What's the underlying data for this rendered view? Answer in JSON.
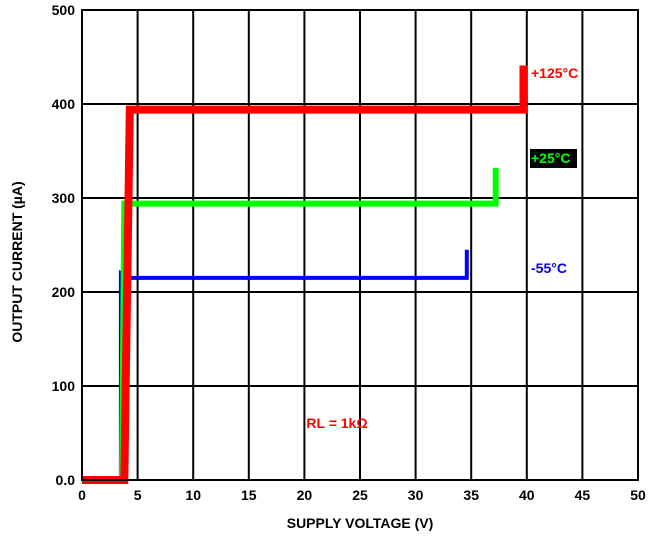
{
  "chart_data": {
    "type": "line",
    "xlabel": "SUPPLY VOLTAGE (V)",
    "ylabel": "OUTPUT CURRENT (µA)",
    "xlim": [
      0,
      50
    ],
    "ylim": [
      0,
      500
    ],
    "grid": true,
    "x_ticks": [
      0,
      5,
      10,
      15,
      20,
      25,
      30,
      35,
      40,
      45,
      50
    ],
    "x_tick_labels": [
      "0",
      "5",
      "10",
      "15",
      "20",
      "25",
      "30",
      "35",
      "40",
      "45",
      "50"
    ],
    "y_ticks": [
      0,
      100,
      200,
      300,
      400,
      500
    ],
    "y_tick_labels": [
      "0.0",
      "100",
      "200",
      "300",
      "400",
      "500"
    ],
    "series": [
      {
        "name": "-55°C",
        "color": "#0000ff",
        "x": [
          3.5,
          3.5,
          4.4,
          34.6,
          34.6
        ],
        "y": [
          0,
          220,
          215,
          215,
          245
        ]
      },
      {
        "name": "+25°C",
        "color": "#00ff00",
        "x": [
          3.6,
          3.8,
          37.2,
          37.2
        ],
        "y": [
          0,
          294,
          294,
          332
        ]
      },
      {
        "name": "+125°C",
        "color": "#ff0000",
        "x": [
          0,
          3.8,
          4.3,
          39.7,
          39.7
        ],
        "y": [
          0,
          0,
          394,
          394,
          441
        ]
      }
    ],
    "annotations": [
      {
        "text": "+125°C",
        "color": "#ff0000",
        "background": null
      },
      {
        "text": "+25°C",
        "color": "#00ff00",
        "background": "#000000"
      },
      {
        "text": "-55°C",
        "color": "#0000ff",
        "background": null
      },
      {
        "text": "RL = 1kΩ",
        "color": "#ff0000",
        "background": null
      }
    ]
  }
}
